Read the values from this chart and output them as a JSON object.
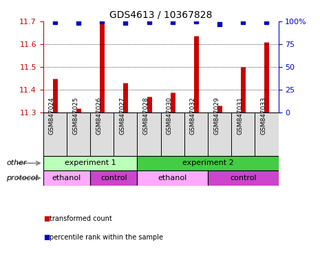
{
  "title": "GDS4613 / 10367828",
  "samples": [
    "GSM847024",
    "GSM847025",
    "GSM847026",
    "GSM847027",
    "GSM847028",
    "GSM847030",
    "GSM847032",
    "GSM847029",
    "GSM847031",
    "GSM847033"
  ],
  "bar_values": [
    11.45,
    11.32,
    11.695,
    11.43,
    11.37,
    11.39,
    11.635,
    11.33,
    11.5,
    11.61
  ],
  "dot_values": [
    99,
    98,
    100,
    98,
    99,
    99,
    100,
    97,
    99,
    99
  ],
  "bar_color": "#cc0000",
  "dot_color": "#0000cc",
  "ylim": [
    11.3,
    11.7
  ],
  "yticks": [
    11.3,
    11.4,
    11.5,
    11.6,
    11.7
  ],
  "right_yticks": [
    0,
    25,
    50,
    75,
    100
  ],
  "right_ylim": [
    0,
    100
  ],
  "grid_yticks": [
    11.4,
    11.5,
    11.6
  ],
  "groups_other": [
    {
      "label": "experiment 1",
      "start": 0,
      "end": 4,
      "color": "#bbffbb"
    },
    {
      "label": "experiment 2",
      "start": 4,
      "end": 10,
      "color": "#44cc44"
    }
  ],
  "groups_protocol": [
    {
      "label": "ethanol",
      "start": 0,
      "end": 2,
      "color": "#ffaaff"
    },
    {
      "label": "control",
      "start": 2,
      "end": 4,
      "color": "#cc44cc"
    },
    {
      "label": "ethanol",
      "start": 4,
      "end": 7,
      "color": "#ffaaff"
    },
    {
      "label": "control",
      "start": 7,
      "end": 10,
      "color": "#cc44cc"
    }
  ],
  "legend_items": [
    {
      "label": "transformed count",
      "color": "#cc0000"
    },
    {
      "label": "percentile rank within the sample",
      "color": "#0000cc"
    }
  ],
  "left_axis_color": "#cc0000",
  "right_axis_color": "#0000cc",
  "bg_color": "#ffffff",
  "row_label_other": "other",
  "row_label_protocol": "protocol",
  "right_ticklabels": [
    "0",
    "25",
    "50",
    "75",
    "100%"
  ]
}
